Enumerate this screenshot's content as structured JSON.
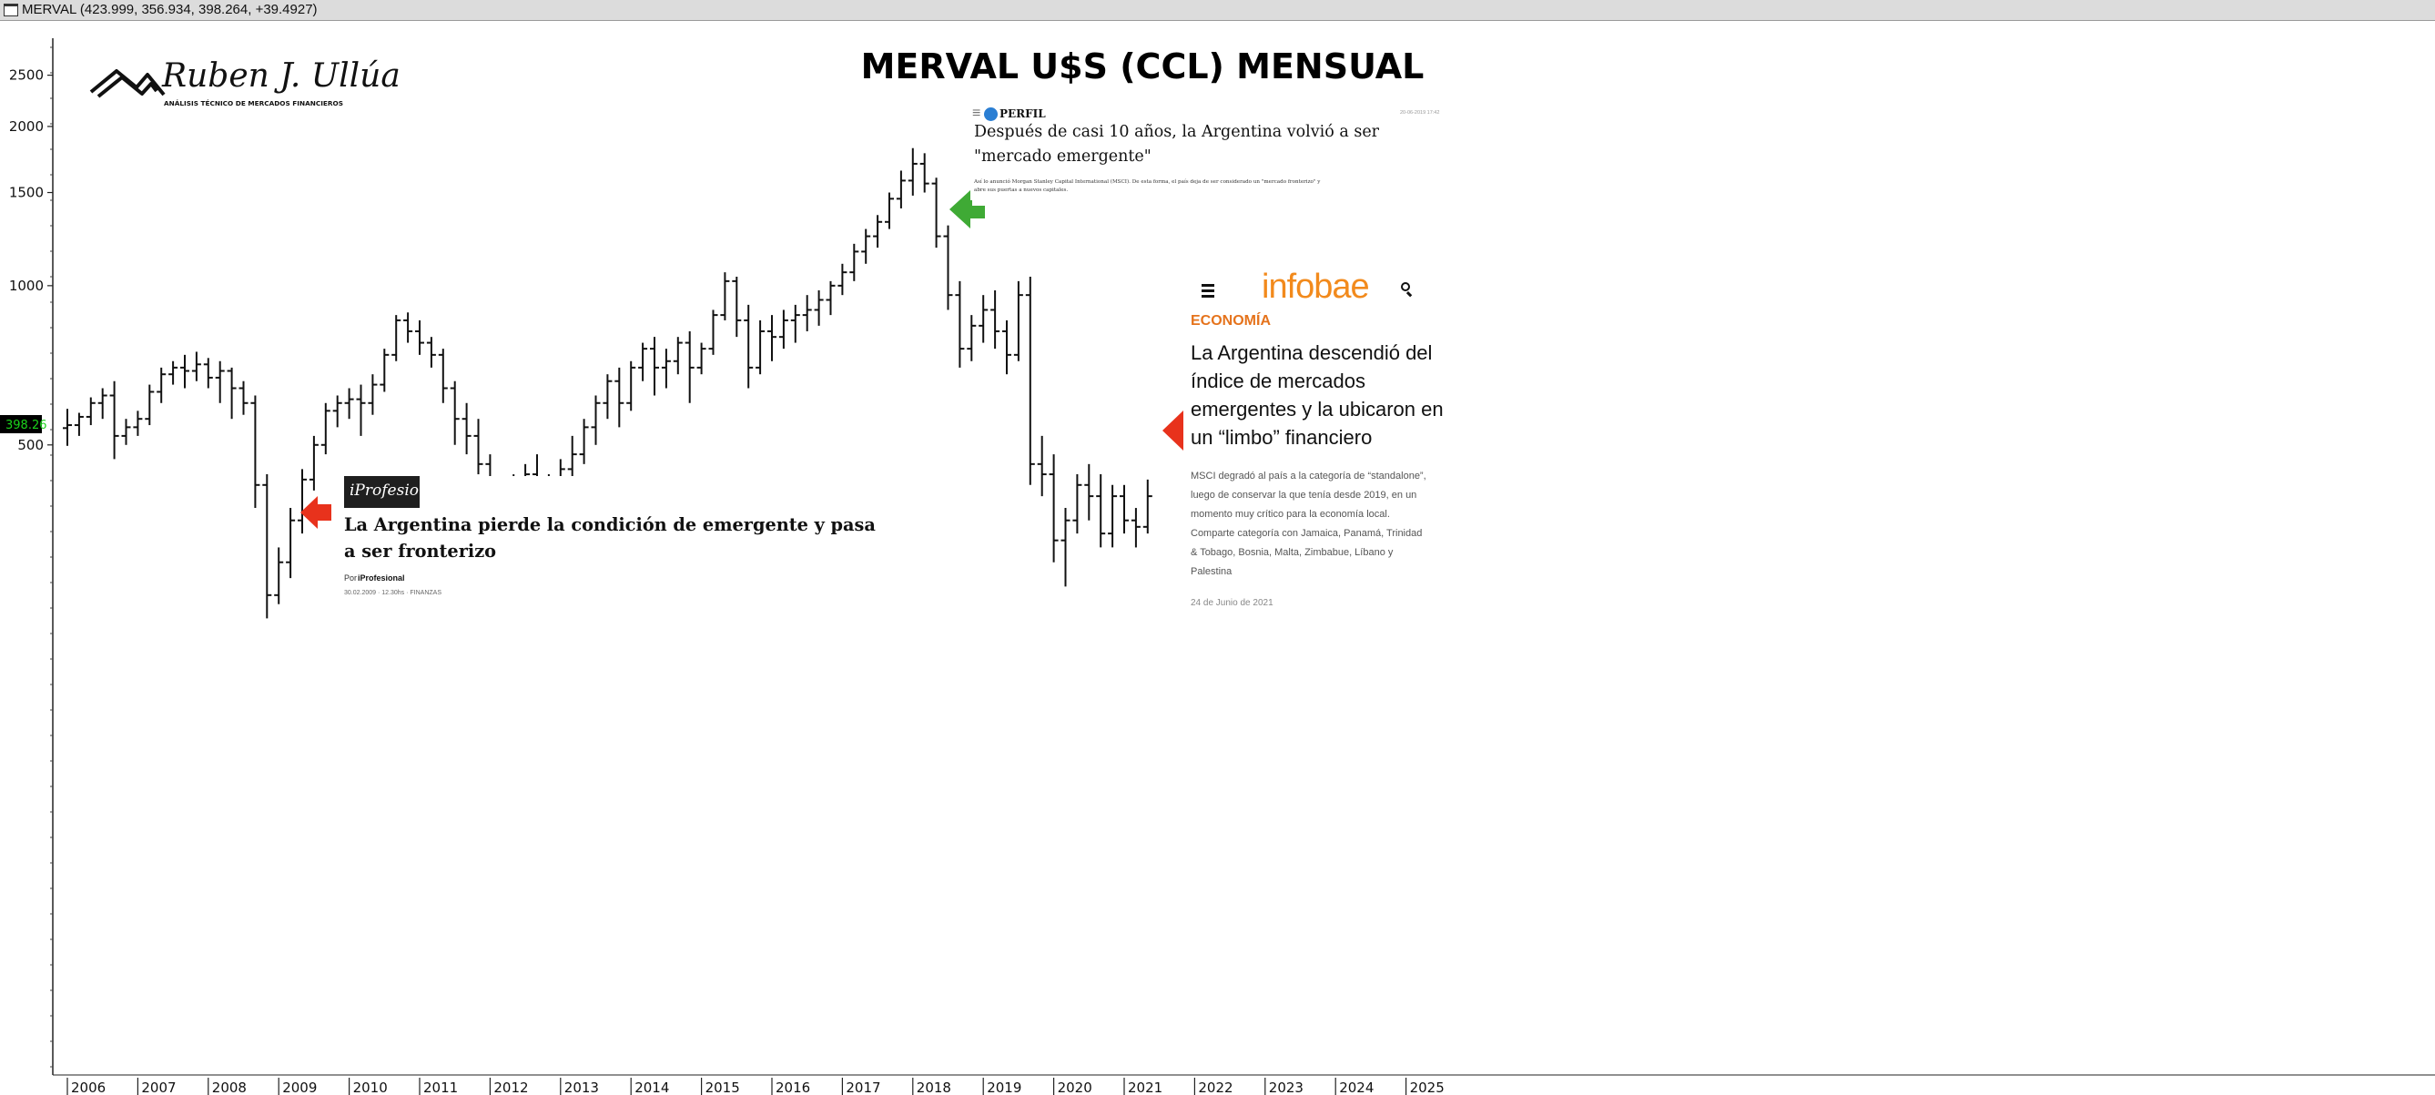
{
  "window": {
    "symbol_text": "MERVAL (423.999, 356.934, 398.264, +39.4927)",
    "price_badge": "398.26",
    "price_badge_color": "#1bd31b"
  },
  "chart_data": {
    "type": "ohlc-bar",
    "title": "MERVAL U$S (CCL) MENSUAL",
    "scale": "log",
    "ylim": [
      220,
      2800
    ],
    "y_ticks": [
      500,
      1000,
      1500,
      2000,
      2500
    ],
    "x_ticks": [
      "2006",
      "2007",
      "2008",
      "2009",
      "2010",
      "2011",
      "2012",
      "2013",
      "2014",
      "2015",
      "2016",
      "2017",
      "2018",
      "2019",
      "2020",
      "2021",
      "2022",
      "2023",
      "2024",
      "2025"
    ],
    "last_price": 398.26,
    "series": [
      {
        "values": [
          [
            2006.0,
            [
              538,
              585,
              498,
              545
            ]
          ],
          [
            2006.1667,
            [
              545,
              575,
              520,
              565
            ]
          ],
          [
            2006.3333,
            [
              565,
              615,
              545,
              600
            ]
          ],
          [
            2006.5,
            [
              600,
              640,
              560,
              620
            ]
          ],
          [
            2006.6667,
            [
              620,
              660,
              470,
              520
            ]
          ],
          [
            2006.8333,
            [
              520,
              560,
              500,
              540
            ]
          ],
          [
            2007.0,
            [
              540,
              580,
              520,
              560
            ]
          ],
          [
            2007.1667,
            [
              560,
              650,
              545,
              630
            ]
          ],
          [
            2007.3333,
            [
              630,
              700,
              600,
              680
            ]
          ],
          [
            2007.5,
            [
              680,
              720,
              650,
              700
            ]
          ],
          [
            2007.6667,
            [
              700,
              740,
              640,
              690
            ]
          ],
          [
            2007.8333,
            [
              690,
              750,
              660,
              710
            ]
          ],
          [
            2008.0,
            [
              710,
              730,
              640,
              670
            ]
          ],
          [
            2008.1667,
            [
              670,
              720,
              600,
              690
            ]
          ],
          [
            2008.3333,
            [
              690,
              700,
              560,
              640
            ]
          ],
          [
            2008.5,
            [
              640,
              660,
              570,
              600
            ]
          ],
          [
            2008.6667,
            [
              600,
              620,
              380,
              420
            ]
          ],
          [
            2008.8333,
            [
              420,
              440,
              235,
              260
            ]
          ],
          [
            2009.0,
            [
              260,
              320,
              250,
              300
            ]
          ],
          [
            2009.1667,
            [
              300,
              380,
              280,
              360
            ]
          ],
          [
            2009.3333,
            [
              360,
              450,
              340,
              430
            ]
          ],
          [
            2009.5,
            [
              430,
              520,
              410,
              500
            ]
          ],
          [
            2009.6667,
            [
              500,
              600,
              480,
              580
            ]
          ],
          [
            2009.8333,
            [
              580,
              620,
              540,
              600
            ]
          ],
          [
            2010.0,
            [
              600,
              640,
              560,
              610
            ]
          ],
          [
            2010.1667,
            [
              610,
              650,
              520,
              600
            ]
          ],
          [
            2010.3333,
            [
              600,
              680,
              570,
              650
            ]
          ],
          [
            2010.5,
            [
              650,
              760,
              630,
              740
            ]
          ],
          [
            2010.6667,
            [
              740,
              880,
              720,
              860
            ]
          ],
          [
            2010.8333,
            [
              860,
              890,
              780,
              820
            ]
          ],
          [
            2011.0,
            [
              820,
              860,
              740,
              780
            ]
          ],
          [
            2011.1667,
            [
              780,
              800,
              700,
              740
            ]
          ],
          [
            2011.3333,
            [
              740,
              760,
              600,
              640
            ]
          ],
          [
            2011.5,
            [
              640,
              660,
              500,
              560
            ]
          ],
          [
            2011.6667,
            [
              560,
              600,
              480,
              520
            ]
          ],
          [
            2011.8333,
            [
              520,
              560,
              440,
              460
            ]
          ],
          [
            2012.0,
            [
              460,
              480,
              360,
              380
            ]
          ],
          [
            2012.1667,
            [
              380,
              420,
              350,
              400
            ]
          ],
          [
            2012.3333,
            [
              400,
              440,
              360,
              420
            ]
          ],
          [
            2012.5,
            [
              420,
              460,
              380,
              440
            ]
          ],
          [
            2012.6667,
            [
              440,
              480,
              380,
              400
            ]
          ],
          [
            2012.8333,
            [
              400,
              440,
              340,
              420
            ]
          ],
          [
            2013.0,
            [
              420,
              470,
              380,
              450
            ]
          ],
          [
            2013.1667,
            [
              450,
              520,
              400,
              480
            ]
          ],
          [
            2013.3333,
            [
              480,
              560,
              460,
              540
            ]
          ],
          [
            2013.5,
            [
              540,
              620,
              500,
              600
            ]
          ],
          [
            2013.6667,
            [
              600,
              680,
              560,
              660
            ]
          ],
          [
            2013.8333,
            [
              660,
              700,
              540,
              600
            ]
          ],
          [
            2014.0,
            [
              600,
              720,
              580,
              700
            ]
          ],
          [
            2014.1667,
            [
              700,
              780,
              660,
              760
            ]
          ],
          [
            2014.3333,
            [
              760,
              800,
              620,
              700
            ]
          ],
          [
            2014.5,
            [
              700,
              760,
              640,
              720
            ]
          ],
          [
            2014.6667,
            [
              720,
              800,
              680,
              780
            ]
          ],
          [
            2014.8333,
            [
              780,
              820,
              600,
              700
            ]
          ],
          [
            2015.0,
            [
              700,
              780,
              680,
              760
            ]
          ],
          [
            2015.1667,
            [
              760,
              900,
              740,
              880
            ]
          ],
          [
            2015.3333,
            [
              880,
              1060,
              860,
              1020
            ]
          ],
          [
            2015.5,
            [
              1020,
              1040,
              800,
              860
            ]
          ],
          [
            2015.6667,
            [
              860,
              920,
              640,
              700
            ]
          ],
          [
            2015.8333,
            [
              700,
              860,
              680,
              820
            ]
          ],
          [
            2016.0,
            [
              820,
              880,
              720,
              800
            ]
          ],
          [
            2016.1667,
            [
              800,
              900,
              760,
              860
            ]
          ],
          [
            2016.3333,
            [
              860,
              920,
              780,
              880
            ]
          ],
          [
            2016.5,
            [
              880,
              960,
              820,
              900
            ]
          ],
          [
            2016.6667,
            [
              900,
              980,
              840,
              940
            ]
          ],
          [
            2016.8333,
            [
              940,
              1020,
              880,
              1000
            ]
          ],
          [
            2017.0,
            [
              1000,
              1100,
              960,
              1060
            ]
          ],
          [
            2017.1667,
            [
              1060,
              1200,
              1020,
              1160
            ]
          ],
          [
            2017.3333,
            [
              1160,
              1280,
              1100,
              1240
            ]
          ],
          [
            2017.5,
            [
              1240,
              1360,
              1180,
              1320
            ]
          ],
          [
            2017.6667,
            [
              1320,
              1500,
              1280,
              1460
            ]
          ],
          [
            2017.8333,
            [
              1460,
              1650,
              1400,
              1580
            ]
          ],
          [
            2018.0,
            [
              1580,
              1820,
              1480,
              1700
            ]
          ],
          [
            2018.1667,
            [
              1700,
              1780,
              1500,
              1560
            ]
          ],
          [
            2018.3333,
            [
              1560,
              1600,
              1180,
              1240
            ]
          ],
          [
            2018.5,
            [
              1240,
              1300,
              900,
              960
            ]
          ],
          [
            2018.6667,
            [
              960,
              1020,
              700,
              760
            ]
          ],
          [
            2018.8333,
            [
              760,
              880,
              720,
              840
            ]
          ],
          [
            2019.0,
            [
              840,
              960,
              780,
              900
            ]
          ],
          [
            2019.1667,
            [
              900,
              980,
              760,
              820
            ]
          ],
          [
            2019.3333,
            [
              820,
              860,
              680,
              740
            ]
          ],
          [
            2019.5,
            [
              740,
              1020,
              720,
              960
            ]
          ],
          [
            2019.6667,
            [
              960,
              1040,
              420,
              460
            ]
          ],
          [
            2019.8333,
            [
              460,
              520,
              400,
              440
            ]
          ],
          [
            2020.0,
            [
              440,
              480,
              300,
              330
            ]
          ],
          [
            2020.1667,
            [
              330,
              380,
              270,
              360
            ]
          ],
          [
            2020.3333,
            [
              360,
              440,
              340,
              420
            ]
          ],
          [
            2020.5,
            [
              420,
              460,
              360,
              400
            ]
          ],
          [
            2020.6667,
            [
              400,
              440,
              320,
              340
            ]
          ],
          [
            2020.8333,
            [
              340,
              420,
              320,
              400
            ]
          ],
          [
            2021.0,
            [
              400,
              420,
              340,
              360
            ]
          ],
          [
            2021.1667,
            [
              360,
              380,
              320,
              350
            ]
          ],
          [
            2021.3333,
            [
              350,
              430,
              340,
              400
            ]
          ]
        ]
      }
    ]
  },
  "logo": {
    "name": "Ruben J. Ullúa",
    "tagline": "ANÁLISIS TÉCNICO DE MERCADOS FINANCIEROS"
  },
  "perfil": {
    "brand": "PERFIL",
    "date": "20-06-2019 17:42",
    "headline_line1": "Después de casi 10 años, la Argentina volvió a ser",
    "headline_line2": "\"mercado emergente\"",
    "body_line1": "Así lo anunció Morgan Stanley Capital International (MSCI). De esta forma, el país deja de ser considerado un \"mercado fronterizo\" y",
    "body_line2": "abre sus puertas a nuevos capitales."
  },
  "iprofesional": {
    "brand": "iProfesional",
    "headline_line1": "La Argentina pierde la condición de emergente y pasa",
    "headline_line2": "a ser fronterizo",
    "byline_prefix": "Por ",
    "byline_name": "iProfesional",
    "meta": "30.02.2009 · 12.30hs · FINANZAS"
  },
  "infobae": {
    "brand": "infobae",
    "section": "ECONOMÍA",
    "headline_lines": [
      "La Argentina descendió del",
      "índice de mercados",
      "emergentes y la ubicaron en",
      "un “limbo” financiero"
    ],
    "body_lines": [
      "MSCI degradó al país a la categoría de “standalone”,",
      "luego de conservar la que tenía desde 2019, en un",
      "momento muy crítico para la economía local.",
      "Comparte categoría con Jamaica, Panamá, Trinidad",
      "& Tobago, Bosnia, Malta, Zimbabue, Líbano y",
      "Palestina"
    ],
    "date": "24 de Junio de 2021"
  },
  "colors": {
    "red_arrow": "#e8321c",
    "green_arrow": "#3faa35",
    "infobae_orange": "#f28a1c",
    "section_orange": "#e5731c"
  },
  "icons": [
    "menu-icon",
    "search-icon",
    "window-icon",
    "arrow-left-icon"
  ]
}
